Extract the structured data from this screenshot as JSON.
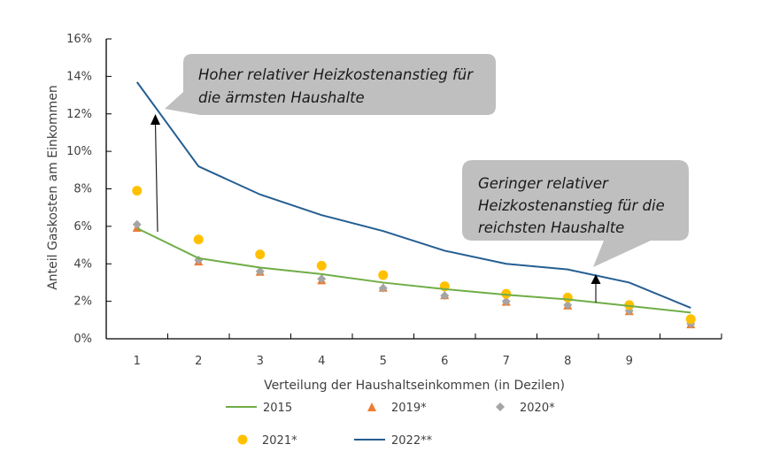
{
  "chart_data": {
    "type": "line",
    "xlabel": "Verteilung der Haushaltseinkommen (in Dezilen)",
    "ylabel": "Anteil Gaskosten am Einkommen",
    "x": [
      1,
      2,
      3,
      4,
      5,
      6,
      7,
      8,
      9,
      10
    ],
    "x_tick_labels": [
      "1",
      "2",
      "3",
      "4",
      "5",
      "6",
      "7",
      "8",
      "9",
      ""
    ],
    "y_tick_labels": [
      "0%",
      "2%",
      "4%",
      "6%",
      "8%",
      "10%",
      "12%",
      "14%",
      "16%"
    ],
    "ylim": [
      0,
      16
    ],
    "grid": false,
    "legend_position": "bottom",
    "series": [
      {
        "name": "2015",
        "kind": "line",
        "color": "#70AD47",
        "values": [
          5.9,
          4.3,
          3.8,
          3.45,
          3.0,
          2.65,
          2.35,
          2.1,
          1.75,
          1.4
        ]
      },
      {
        "name": "2019*",
        "kind": "triangle",
        "color": "#ED7D31",
        "values": [
          5.9,
          4.1,
          3.55,
          3.1,
          2.7,
          2.3,
          1.95,
          1.75,
          1.45,
          0.75
        ]
      },
      {
        "name": "2020*",
        "kind": "diamond",
        "color": "#A5A5A5",
        "values": [
          6.1,
          4.2,
          3.6,
          3.2,
          2.7,
          2.3,
          2.0,
          1.8,
          1.5,
          0.8
        ]
      },
      {
        "name": "2021*",
        "kind": "circle",
        "color": "#FFC000",
        "values": [
          7.9,
          5.3,
          4.5,
          3.9,
          3.4,
          2.8,
          2.4,
          2.2,
          1.8,
          1.05
        ]
      },
      {
        "name": "2022**",
        "kind": "line",
        "color": "#255E91",
        "values": [
          13.7,
          9.2,
          7.7,
          6.6,
          5.75,
          4.7,
          4.0,
          3.7,
          3.0,
          1.65
        ]
      }
    ],
    "annotations": [
      {
        "lines": [
          "Hoher relativer Heizkostenanstieg für",
          "die ärmsten Haushalte"
        ]
      },
      {
        "lines": [
          "Geringer relativer",
          "Heizkostenanstieg für die",
          "reichsten Haushalte"
        ]
      }
    ]
  }
}
